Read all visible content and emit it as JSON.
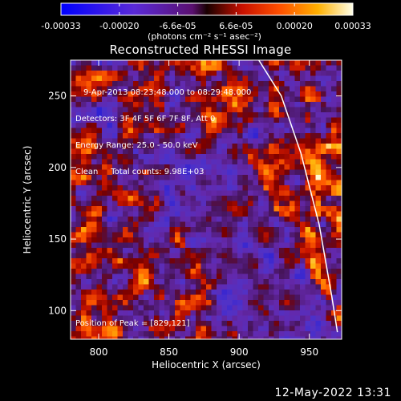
{
  "colorbar": {
    "tick_labels": [
      "-0.00033",
      "-0.00020",
      "-6.6e-05",
      "6.6e-05",
      "0.00020",
      "0.00033"
    ],
    "units_label": "(photons cm⁻² s⁻¹ asec⁻²)",
    "range": [
      -0.00033,
      0.00033
    ]
  },
  "plot": {
    "title": "Reconstructed RHESSI Image",
    "info_lines": [
      "9-Apr-2013 08:23:48.000 to 08:29:48.000",
      "Detectors: 3F 4F 5F 6F 7F 8F, Att 0",
      "Energy Range: 25.0 - 50.0 keV",
      "Clean     Total counts: 9.98E+03"
    ],
    "peak_label": "Position of Peak = [829,121]"
  },
  "chart_data": {
    "type": "heatmap",
    "title": "Reconstructed RHESSI Image",
    "xlabel": "Heliocentric X (arcsec)",
    "ylabel": "Heliocentric Y (arcsec)",
    "xlim": [
      780,
      973
    ],
    "ylim": [
      80,
      275
    ],
    "xticks": [
      800,
      850,
      900,
      950
    ],
    "yticks": [
      100,
      150,
      200,
      250
    ],
    "colormap": "blue-purple-red-yellow-white",
    "limb_curve": [
      [
        914,
        275
      ],
      [
        930,
        250
      ],
      [
        944,
        210
      ],
      [
        957,
        160
      ],
      [
        966,
        110
      ],
      [
        970,
        85
      ]
    ],
    "peak_position": [
      829,
      121
    ]
  },
  "footer": {
    "timestamp": "12-May-2022 13:31"
  }
}
